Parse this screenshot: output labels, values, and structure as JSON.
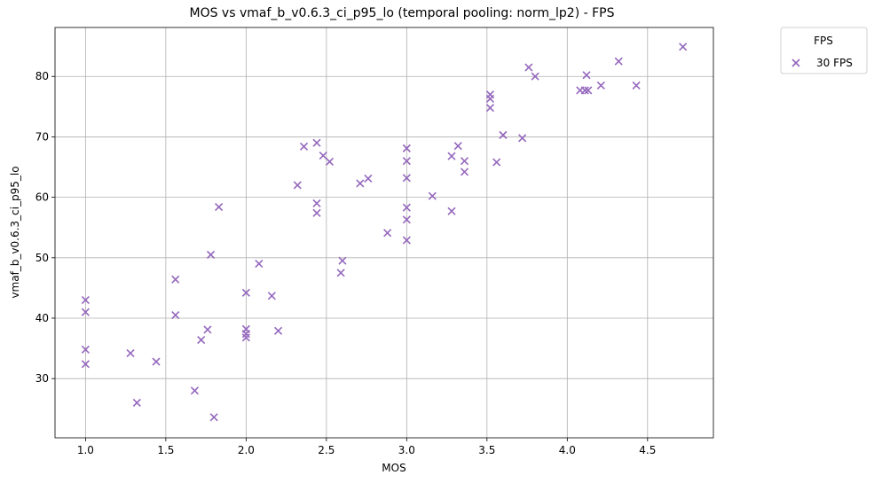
{
  "chart_data": {
    "type": "scatter",
    "title": "MOS vs vmaf_b_v0.6.3_ci_p95_lo (temporal pooling: norm_lp2) - FPS",
    "xlabel": "MOS",
    "ylabel": "vmaf_b_v0.6.3_ci_p95_lo",
    "xlim": [
      0.81,
      4.91
    ],
    "ylim": [
      20.2,
      88.1
    ],
    "xticks": [
      "1.0",
      "1.5",
      "2.0",
      "2.5",
      "3.0",
      "3.5",
      "4.0",
      "4.5"
    ],
    "yticks": [
      "30",
      "40",
      "50",
      "60",
      "70",
      "80"
    ],
    "grid": true,
    "legend": {
      "title": "FPS",
      "placement": "outside-top-right"
    },
    "series": [
      {
        "name": "30 FPS",
        "color": "#9467bd",
        "marker": "x",
        "points": [
          [
            1.0,
            43.0
          ],
          [
            1.0,
            41.0
          ],
          [
            1.0,
            34.8
          ],
          [
            1.0,
            32.4
          ],
          [
            1.28,
            34.2
          ],
          [
            1.32,
            26.0
          ],
          [
            1.44,
            32.8
          ],
          [
            1.56,
            46.4
          ],
          [
            1.56,
            40.5
          ],
          [
            1.68,
            28.0
          ],
          [
            1.72,
            36.4
          ],
          [
            1.76,
            38.1
          ],
          [
            1.78,
            50.5
          ],
          [
            1.8,
            23.6
          ],
          [
            1.83,
            58.4
          ],
          [
            2.0,
            44.2
          ],
          [
            2.0,
            38.2
          ],
          [
            2.0,
            37.4
          ],
          [
            2.0,
            36.8
          ],
          [
            2.08,
            49.0
          ],
          [
            2.16,
            43.7
          ],
          [
            2.2,
            37.9
          ],
          [
            2.32,
            62.0
          ],
          [
            2.36,
            68.4
          ],
          [
            2.44,
            69.0
          ],
          [
            2.44,
            59.0
          ],
          [
            2.44,
            57.4
          ],
          [
            2.48,
            66.9
          ],
          [
            2.52,
            65.9
          ],
          [
            2.59,
            47.5
          ],
          [
            2.6,
            49.5
          ],
          [
            2.71,
            62.3
          ],
          [
            2.76,
            63.1
          ],
          [
            2.88,
            54.1
          ],
          [
            3.0,
            68.1
          ],
          [
            3.0,
            66.0
          ],
          [
            3.0,
            63.2
          ],
          [
            3.0,
            58.3
          ],
          [
            3.0,
            56.3
          ],
          [
            3.0,
            52.9
          ],
          [
            3.16,
            60.2
          ],
          [
            3.28,
            66.8
          ],
          [
            3.28,
            57.7
          ],
          [
            3.32,
            68.5
          ],
          [
            3.36,
            66.0
          ],
          [
            3.36,
            64.2
          ],
          [
            3.52,
            77.0
          ],
          [
            3.52,
            76.3
          ],
          [
            3.52,
            74.8
          ],
          [
            3.56,
            65.8
          ],
          [
            3.6,
            70.3
          ],
          [
            3.72,
            69.8
          ],
          [
            3.76,
            81.5
          ],
          [
            3.8,
            80.0
          ],
          [
            4.08,
            77.7
          ],
          [
            4.11,
            77.7
          ],
          [
            4.12,
            80.2
          ],
          [
            4.13,
            77.7
          ],
          [
            4.21,
            78.5
          ],
          [
            4.32,
            82.5
          ],
          [
            4.43,
            78.5
          ],
          [
            4.72,
            84.9
          ]
        ]
      }
    ]
  }
}
